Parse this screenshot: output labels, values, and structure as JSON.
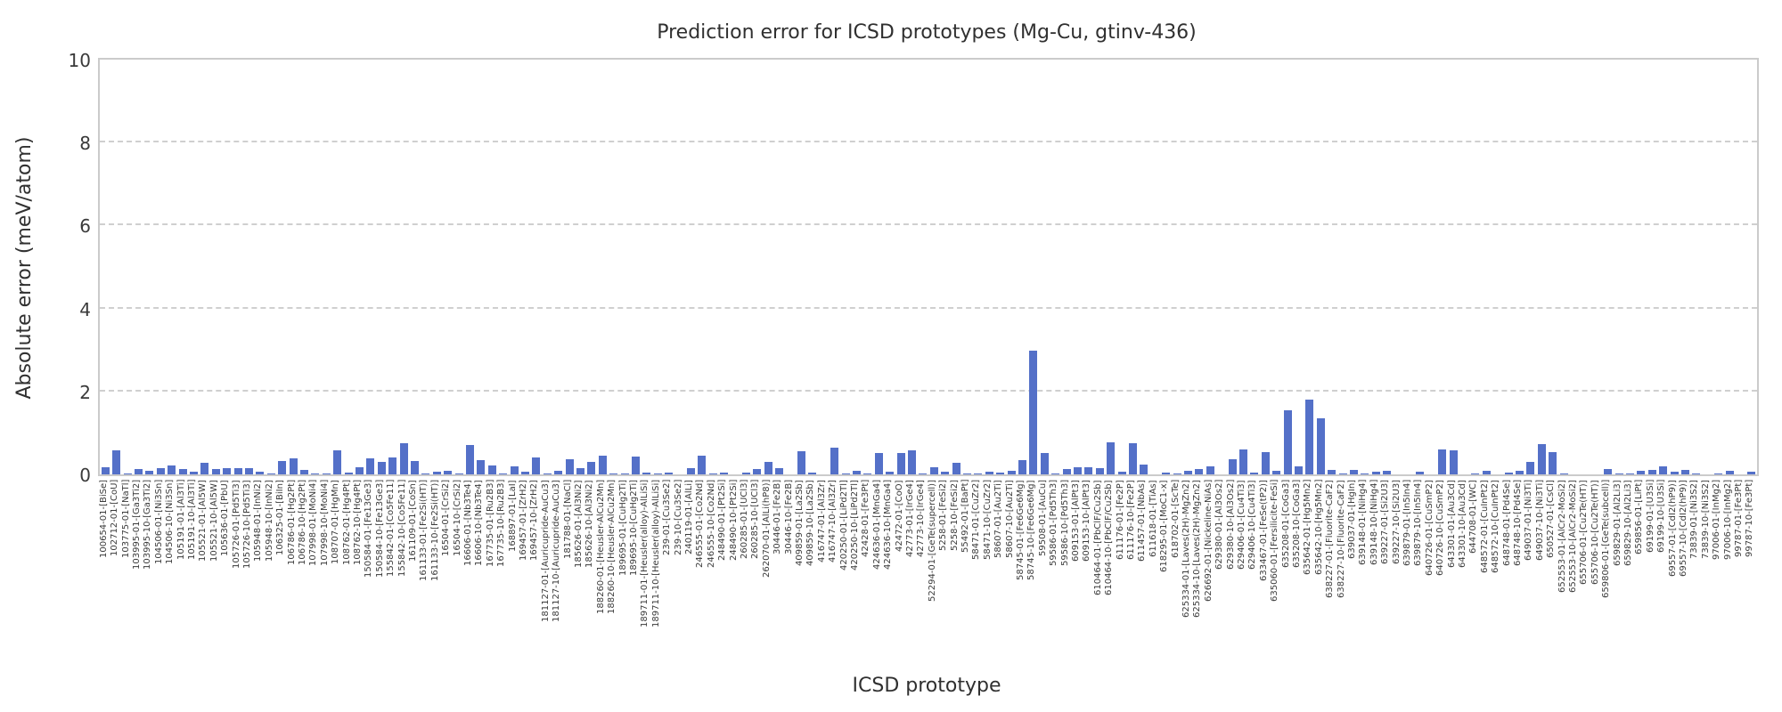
{
  "title": "Prediction error for ICSD prototypes (Mg-Cu, gtinv-436)",
  "colors": {
    "bar": "#5470c8",
    "grid": "#cfcfcf",
    "spine": "#cbcbcb",
    "text": "#303030",
    "tick_text": "#3a3a3a"
  },
  "chart_data": {
    "type": "bar",
    "title": "Prediction error for ICSD prototypes (Mg-Cu, gtinv-436)",
    "xlabel": "ICSD prototype",
    "ylabel": "Absolute error (meV/atom)",
    "ylim": [
      0,
      10
    ],
    "yticks": [
      0,
      2,
      4,
      6,
      8,
      10
    ],
    "grid": "horizontal-dashed",
    "legend": "none",
    "bar_color": "#5470c8",
    "categories": [
      "100654-01-[BiSe]",
      "102712-01-[CoU]",
      "103775-01-[NaTl]",
      "103995-01-[Ga3Ti2]",
      "103995-10-[Ga3Ti2]",
      "104506-01-[Ni3Sn]",
      "104506-10-[Ni3Sn]",
      "105191-01-[Al3Ti]",
      "105191-10-[Al3Ti]",
      "105521-01-[Al5W]",
      "105521-10-[Al5W]",
      "105636-01-[PbU]",
      "105726-01-[Pd5Ti3]",
      "105726-10-[Pd5Ti3]",
      "105948-01-[InNi2]",
      "105948-10-[InNi2]",
      "106325-01-[BiIn]",
      "106786-01-[Hg2Pt]",
      "106786-10-[Hg2Pt]",
      "107998-01-[MoNi4]",
      "107998-10-[MoNi4]",
      "108707-01-[HgMn]",
      "108762-01-[Hg4Pt]",
      "108762-10-[Hg4Pt]",
      "150584-01-[Fe13Ge3]",
      "150584-10-[Fe13Ge3]",
      "155842-01-[Co5Fe11]",
      "155842-10-[Co5Fe11]",
      "161109-01-[CoSn]",
      "161133-01-[Fe2Si(HT)]",
      "161133-10-[Fe2Si(HT)]",
      "16504-01-[CrSi2]",
      "16504-10-[CrSi2]",
      "16606-01-[Nb3Te4]",
      "16606-10-[Nb3Te4]",
      "167735-01-[Ru2B3]",
      "167735-10-[Ru2B3]",
      "168897-01-[LaI]",
      "169457-01-[ZrH2]",
      "169457-10-[ZrH2]",
      "181127-01-[Auricupride-AuCu3]",
      "181127-10-[Auricupride-AuCu3]",
      "181788-01-[NaCl]",
      "185626-01-[Al3Ni2]",
      "185626-10-[Al3Ni2]",
      "188260-01-[Heusler-AlCu2Mn]",
      "188260-10-[Heusler-AlCu2Mn]",
      "189695-01-[CuHg2Ti]",
      "189695-10-[CuHg2Ti]",
      "189711-01-[Heusler(alloy)-AlLiSi]",
      "189711-10-[Heusler(alloy)-AlLiSi]",
      "239-01-[Cu3Se2]",
      "239-10-[Cu3Se2]",
      "240119-01-[AlLi]",
      "246555-01-[Co2Nd]",
      "246555-10-[Co2Nd]",
      "248490-01-[Pt2Si]",
      "248490-10-[Pt2Si]",
      "260285-01-[UCl3]",
      "260285-10-[UCl3]",
      "262070-01-[AlLi(hP8)]",
      "30446-01-[Fe2B]",
      "30446-10-[Fe2B]",
      "409859-01-[La2Sb]",
      "409859-10-[La2Sb]",
      "416747-01-[Al3Zr]",
      "416747-10-[Al3Zr]",
      "420250-01-[LiPd2Tl]",
      "420250-10-[LiPd2Tl]",
      "42428-01-[Fe3Pt]",
      "424636-01-[MnGa4]",
      "424636-10-[MnGa4]",
      "42472-01-[CoO]",
      "42773-01-[IrGe4]",
      "42773-10-[IrGe4]",
      "52294-01-[GeTe(supercell)]",
      "5258-01-[FeSi2]",
      "5258-10-[FeSi2]",
      "55492-01-[BaPt]",
      "58471-01-[CuZr2]",
      "58471-10-[CuZr2]",
      "58607-01-[Au2Ti]",
      "58607-10-[Au2Ti]",
      "58745-01-[Fe6Ge6Mg]",
      "58745-10-[Fe6Ge6Mg]",
      "59508-01-[AuCu]",
      "59586-01-[Pd5Th3]",
      "59586-10-[Pd5Th3]",
      "609153-01-[AlPt3]",
      "609153-10-[AlPt3]",
      "610464-01-[PbClF/Cu2Sb]",
      "610464-10-[PbClF/Cu2Sb]",
      "611176-01-[Fe2P]",
      "611176-10-[Fe2P]",
      "611457-01-[NbAs]",
      "611618-01-[TiAs]",
      "618295-01-[MoC1-x]",
      "618702-01-[ScTe]",
      "625334-01-[Laves(2H)-MgZn2]",
      "625334-10-[Laves(2H)-MgZn2]",
      "626692-01-[Nickeline-NiAs]",
      "629380-01-[Al3Os2]",
      "629380-10-[Al3Os2]",
      "629406-01-[Cu4Ti3]",
      "629406-10-[Cu4Ti3]",
      "633467-01-[FeSe(tP2)]",
      "635060-01-[Fersilicite-FeSi]",
      "635208-01-[CoGa3]",
      "635208-10-[CoGa3]",
      "635642-01-[Hg5Mn2]",
      "635642-10-[Hg5Mn2]",
      "638227-01-[Fluorite-CaF2]",
      "638227-10-[Fluorite-CaF2]",
      "639037-01-[HgIn]",
      "639148-01-[NiHg4]",
      "639148-10-[NiHg4]",
      "639227-01-[Si2U3]",
      "639227-10-[Si2U3]",
      "639879-01-[In5In4]",
      "639879-10-[In5In4]",
      "640726-01-[CuSmP2]",
      "640726-10-[CuSmP2]",
      "643301-01-[Au3Cd]",
      "643301-10-[Au3Cd]",
      "644708-01-[WC]",
      "648572-01-[CuInPt2]",
      "648572-10-[CuInPt2]",
      "648748-01-[Pd4Se]",
      "648748-10-[Pd4Se]",
      "649037-01-[Ni3Ti]",
      "649037-10-[Ni3Ti]",
      "650527-01-[CsCl]",
      "652553-01-[AlCr2-MoSi2]",
      "652553-10-[AlCr2-MoSi2]",
      "655706-01-[Cu2Te(HT)]",
      "655706-10-[Cu2Te(HT)]",
      "659806-01-[GeTe(subcell)]",
      "659829-01-[Al2Li3]",
      "659829-10-[Al2Li3]",
      "659856-01-[LiPt]",
      "69199-01-[U3Si]",
      "69199-10-[U3Si]",
      "69557-01-[CdI2(hP9)]",
      "69557-10-[CdI2(hP9)]",
      "73839-01-[Ni3S2]",
      "73839-10-[Ni3S2]",
      "97006-01-[InMg2]",
      "97006-10-[InMg2]",
      "99787-01-[Fe3Pt]",
      "99787-10-[Fe3Pt]"
    ],
    "values": [
      0.18,
      0.57,
      0.03,
      0.12,
      0.08,
      0.16,
      0.21,
      0.12,
      0.06,
      0.28,
      0.12,
      0.14,
      0.14,
      0.14,
      0.06,
      0.02,
      0.32,
      0.38,
      0.1,
      0.03,
      0.02,
      0.57,
      0.04,
      0.17,
      0.38,
      0.3,
      0.41,
      0.75,
      0.32,
      0.02,
      0.06,
      0.09,
      0.02,
      0.7,
      0.35,
      0.22,
      0.02,
      0.19,
      0.06,
      0.4,
      0.02,
      0.09,
      0.36,
      0.16,
      0.29,
      0.45,
      0.02,
      0.02,
      0.42,
      0.05,
      0.03,
      0.05,
      0.01,
      0.14,
      0.44,
      0.02,
      0.04,
      0.01,
      0.05,
      0.13,
      0.3,
      0.15,
      0.01,
      0.55,
      0.05,
      0.01,
      0.65,
      0.02,
      0.09,
      0.03,
      0.52,
      0.06,
      0.51,
      0.57,
      0.02,
      0.18,
      0.07,
      0.27,
      0.02,
      0.03,
      0.07,
      0.05,
      0.08,
      0.35,
      2.98,
      0.52,
      0.02,
      0.12,
      0.18,
      0.18,
      0.15,
      0.78,
      0.07,
      0.75,
      0.23,
      0.01,
      0.05,
      0.03,
      0.08,
      0.12,
      0.19,
      0.01,
      0.37,
      0.61,
      0.05,
      0.54,
      0.08,
      1.55,
      0.2,
      1.81,
      1.36,
      0.1,
      0.02,
      0.11,
      0.03,
      0.07,
      0.08,
      0.01,
      0.01,
      0.07,
      0.01,
      0.6,
      0.58,
      0.01,
      0.03,
      0.09,
      0.01,
      0.05,
      0.08,
      0.31,
      0.73,
      0.54,
      0.02,
      0.01,
      0.01,
      0.01,
      0.13,
      0.03,
      0.02,
      0.09,
      0.11,
      0.19,
      0.07,
      0.1,
      0.03,
      0.01,
      0.03,
      0.08,
      0.01,
      0.06
    ]
  }
}
